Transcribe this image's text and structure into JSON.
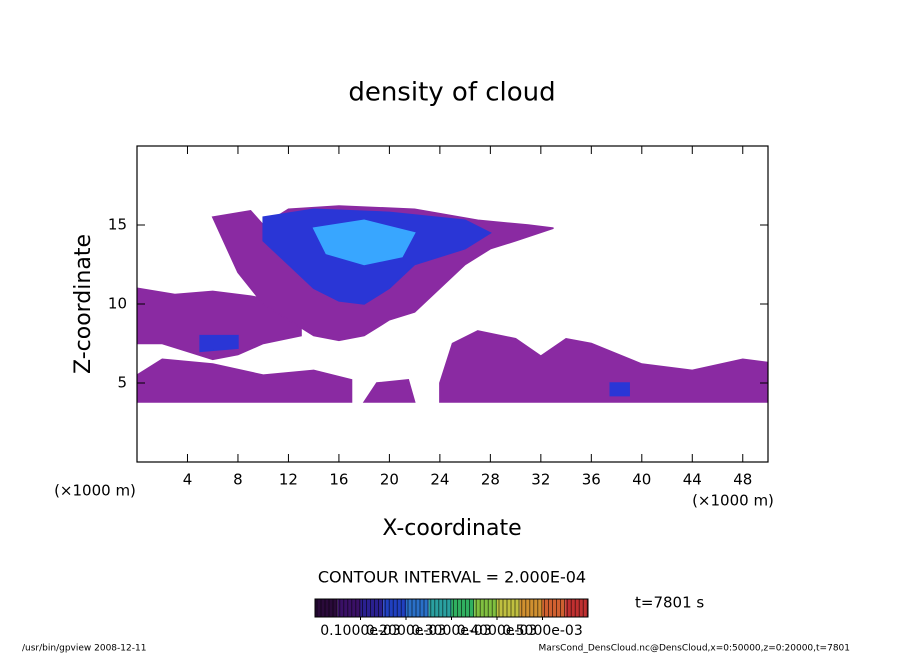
{
  "chart_data": {
    "type": "contour",
    "title": "density of cloud",
    "xlabel": "X-coordinate",
    "ylabel": "Z-coordinate",
    "x_unit": "(×1000 m)",
    "xlim": [
      0,
      50
    ],
    "xticks": [
      4,
      8,
      12,
      16,
      20,
      24,
      28,
      32,
      36,
      40,
      44,
      48
    ],
    "ylim": [
      0,
      20
    ],
    "yticks": [
      5,
      10,
      15
    ],
    "regions": [
      {
        "level": 0.0001,
        "color": "#8a2aa2",
        "x": [
          0,
          3,
          6,
          9,
          11,
          13,
          13,
          10,
          8,
          6,
          4,
          2,
          0
        ],
        "z": [
          11,
          10.6,
          10.8,
          10.5,
          10.2,
          9.5,
          8,
          7.5,
          6.8,
          6.5,
          7,
          7.5,
          7.5
        ]
      },
      {
        "level": 0.0001,
        "color": "#8a2aa2",
        "x": [
          0,
          17,
          17,
          14,
          10,
          6,
          2,
          0
        ],
        "z": [
          3.8,
          3.8,
          5.2,
          5.8,
          5.5,
          6.2,
          6.5,
          5.5
        ]
      },
      {
        "level": 0.0001,
        "color": "#8a2aa2",
        "x": [
          18,
          22,
          21.5,
          19
        ],
        "z": [
          3.8,
          3.8,
          5.2,
          5
        ]
      },
      {
        "level": 0.0001,
        "color": "#8a2aa2",
        "x": [
          24,
          50,
          50,
          48,
          44,
          40,
          36,
          34,
          32,
          30,
          27,
          25,
          24
        ],
        "z": [
          3.8,
          3.8,
          6.3,
          6.5,
          5.8,
          6.2,
          7.5,
          7.8,
          6.7,
          7.8,
          8.3,
          7.5,
          5
        ]
      },
      {
        "level": 0.0001,
        "color": "#8a2aa2",
        "x": [
          6,
          9,
          10,
          12,
          16,
          22,
          27,
          31,
          33,
          30,
          28,
          26,
          24,
          22,
          20,
          18,
          16,
          14,
          12,
          10,
          8
        ],
        "z": [
          15.5,
          15.9,
          15,
          16,
          16.2,
          16,
          15.3,
          15,
          14.8,
          14,
          13.5,
          12.5,
          11,
          9.5,
          9,
          8,
          7.7,
          8,
          9,
          10,
          12
        ]
      },
      {
        "level": 0.0002,
        "color": "#2a36d6",
        "x": [
          10,
          14,
          20,
          26,
          28,
          26,
          22,
          20,
          18,
          16,
          14,
          12,
          10
        ],
        "z": [
          15.5,
          16,
          15.8,
          15.3,
          14.5,
          13.5,
          12.5,
          11,
          10,
          10.2,
          11,
          12.5,
          14
        ]
      },
      {
        "level": 0.0002,
        "color": "#2a36d6",
        "x": [
          5,
          8,
          8,
          5
        ],
        "z": [
          7,
          7.2,
          8,
          8
        ]
      },
      {
        "level": 0.0002,
        "color": "#2a36d6",
        "x": [
          37.5,
          39,
          39,
          37.5
        ],
        "z": [
          4.2,
          4.2,
          5,
          5
        ]
      },
      {
        "level": 0.0003,
        "color": "#38a6ff",
        "x": [
          14,
          18,
          22,
          21,
          18,
          15
        ],
        "z": [
          14.8,
          15.3,
          14.5,
          13,
          12.5,
          13.2
        ]
      }
    ],
    "contour_interval": "CONTOUR INTERVAL = 2.000E-04",
    "time_label": "t=7801 s",
    "colorbar": {
      "lim": [
        0,
        0.0006
      ],
      "levels": [
        0,
        5e-05,
        0.0001,
        0.00015,
        0.0002,
        0.00025,
        0.0003,
        0.00035,
        0.0004,
        0.00045,
        0.0005,
        0.00055
      ],
      "colors": [
        "#2a0a3a",
        "#3a1066",
        "#2a2090",
        "#2040c0",
        "#2a70c8",
        "#2aa0a0",
        "#30b060",
        "#80c040",
        "#c0c040",
        "#d09030",
        "#d06030",
        "#c03030"
      ],
      "ticks": [
        {
          "value": 0.0001,
          "label": "0.1000e-03"
        },
        {
          "value": 0.0002,
          "label": "0.2000e-03"
        },
        {
          "value": 0.0003,
          "label": "0.3000e-03"
        },
        {
          "value": 0.0004,
          "label": "0.4000e-03"
        },
        {
          "value": 0.0005,
          "label": "0.5000e-03"
        }
      ]
    },
    "footer_left": "/usr/bin/gpview   2008-12-11",
    "footer_right": "MarsCond_DensCloud.nc@DensCloud,x=0:50000,z=0:20000,t=7801"
  }
}
